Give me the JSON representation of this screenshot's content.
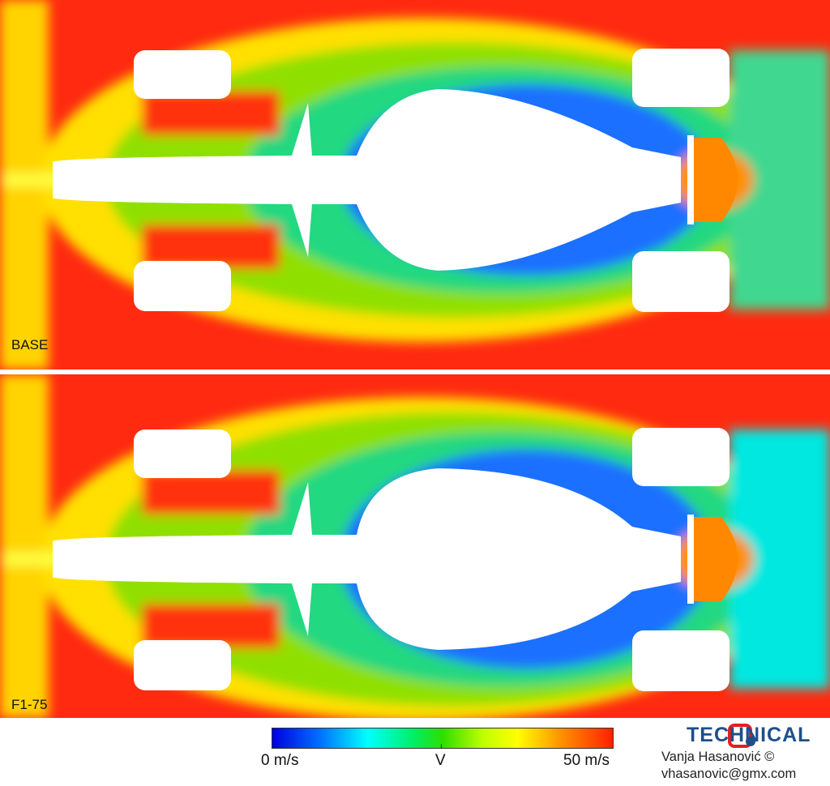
{
  "panels": [
    {
      "label": "BASE"
    },
    {
      "label": "F1-75"
    }
  ],
  "colorbar": {
    "variable": "V",
    "min_label": "0 m/s",
    "max_label": "50 m/s",
    "min": 0,
    "max": 50,
    "unit": "m/s",
    "colors": [
      "#0000dd",
      "#00ffff",
      "#30dd00",
      "#ffff00",
      "#ff2000"
    ]
  },
  "logo": {
    "text": "TECHNICAL",
    "color": "#1e4f8a",
    "accent": "#e02020"
  },
  "credit": {
    "author": "Vanja Hasanović ©",
    "email": "vhasanovic@gmx.com"
  },
  "watermark": "TECHNICAL"
}
